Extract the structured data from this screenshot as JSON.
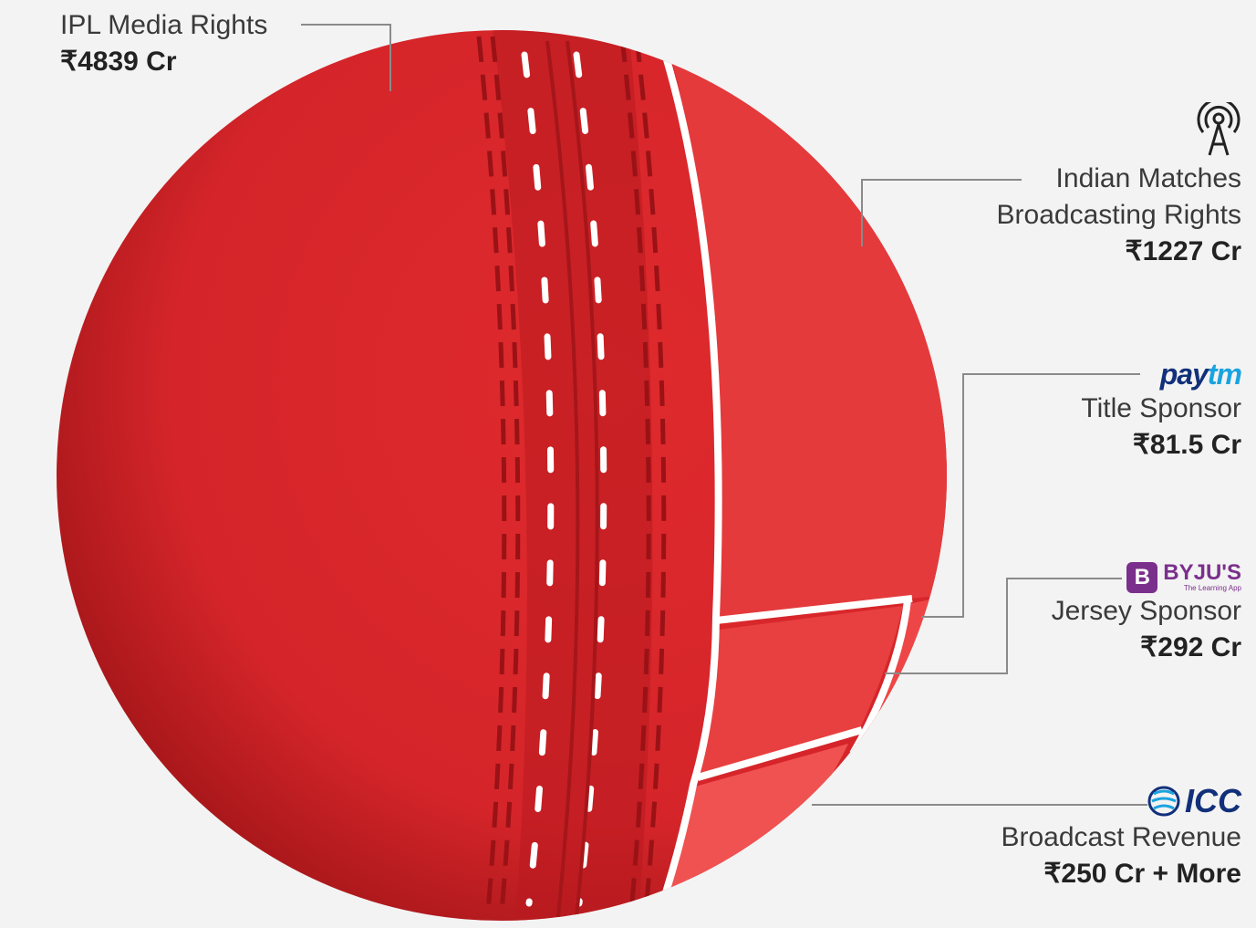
{
  "chart_data": {
    "type": "pie",
    "subtype": "cricket-ball-treemap",
    "segments": [
      {
        "name": "IPL Media Rights",
        "value_label": "₹4839 Cr",
        "value": 4839,
        "color": "#d9262a"
      },
      {
        "name_lines": [
          "Indian Matches",
          "Broadcasting Rights"
        ],
        "value_label": "₹1227 Cr",
        "value": 1227,
        "color": "#e43a3c",
        "icon": "broadcast-tower-icon"
      },
      {
        "name": "Title Sponsor",
        "value_label": "₹81.5 Cr",
        "value": 81.5,
        "color": "#ee4646",
        "logo": "Paytm"
      },
      {
        "name": "Jersey Sponsor",
        "value_label": "₹292 Cr",
        "value": 292,
        "color": "#e84040",
        "logo": "BYJU'S"
      },
      {
        "name": "Broadcast Revenue",
        "value_label": "₹250 Cr + More",
        "value": 250,
        "color": "#f05252",
        "logo": "ICC"
      }
    ]
  },
  "logos": {
    "paytm_a": "pay",
    "paytm_b": "tm",
    "byjus_mark": "B",
    "byjus_name": "BYJU'S",
    "byjus_tagline": "The Learning App",
    "icc": "ICC"
  },
  "colors": {
    "background": "#f3f3f3",
    "ball_main": "#d9262a",
    "ball_dark": "#a91618",
    "seam": "#b81a1f",
    "stitch": "#ffffff",
    "leader_line": "#8a8a8a"
  }
}
